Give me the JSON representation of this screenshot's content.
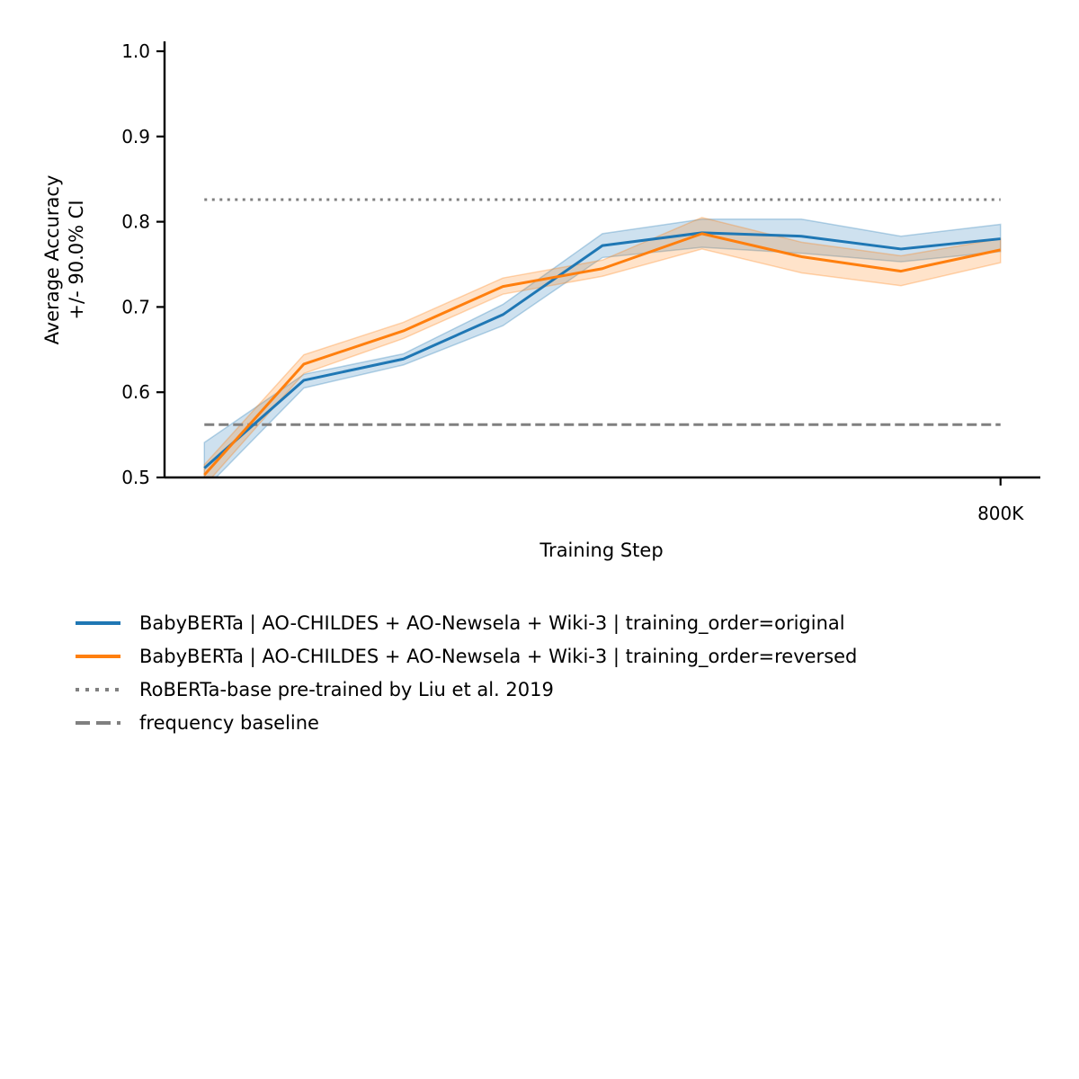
{
  "chart_data": {
    "type": "line",
    "xlabel": "Training Step",
    "ylabel_line1": "Average Accuracy",
    "ylabel_line2": "+/- 90.0% CI",
    "ylim": [
      0.5,
      1.0
    ],
    "yticks": [
      0.5,
      0.6,
      0.7,
      0.8,
      0.9,
      1.0
    ],
    "ytick_labels": [
      "0.5",
      "0.6",
      "0.7",
      "0.8",
      "0.9",
      "1.0"
    ],
    "xlim": [
      -40000,
      840000
    ],
    "xticks": [
      800000
    ],
    "xtick_labels": [
      "800K"
    ],
    "x": [
      0,
      100000,
      200000,
      300000,
      400000,
      500000,
      600000,
      700000,
      800000
    ],
    "series": [
      {
        "name": "BabyBERTa | AO-CHILDES + AO-Newsela + Wiki-3 | training_order=original",
        "color": "#1f77b4",
        "values": [
          0.511,
          0.614,
          0.639,
          0.691,
          0.772,
          0.787,
          0.783,
          0.768,
          0.78
        ],
        "ci_lower": [
          0.486,
          0.605,
          0.632,
          0.678,
          0.758,
          0.77,
          0.763,
          0.753,
          0.765
        ],
        "ci_upper": [
          0.541,
          0.621,
          0.645,
          0.703,
          0.786,
          0.803,
          0.803,
          0.783,
          0.797
        ]
      },
      {
        "name": "BabyBERTa | AO-CHILDES + AO-Newsela + Wiki-3 | training_order=reversed",
        "color": "#ff7f0e",
        "values": [
          0.503,
          0.633,
          0.672,
          0.724,
          0.745,
          0.786,
          0.759,
          0.742,
          0.767
        ],
        "ci_lower": [
          0.49,
          0.622,
          0.663,
          0.715,
          0.736,
          0.768,
          0.74,
          0.725,
          0.752
        ],
        "ci_upper": [
          0.515,
          0.644,
          0.682,
          0.734,
          0.755,
          0.805,
          0.776,
          0.76,
          0.78
        ]
      }
    ],
    "reference_lines": [
      {
        "name": "RoBERTa-base pre-trained by Liu et al. 2019",
        "value": 0.826,
        "color": "#808080",
        "style": "dotted"
      },
      {
        "name": "frequency baseline",
        "value": 0.562,
        "color": "#808080",
        "style": "dashed"
      }
    ],
    "grid": false,
    "legend_position": "below"
  }
}
